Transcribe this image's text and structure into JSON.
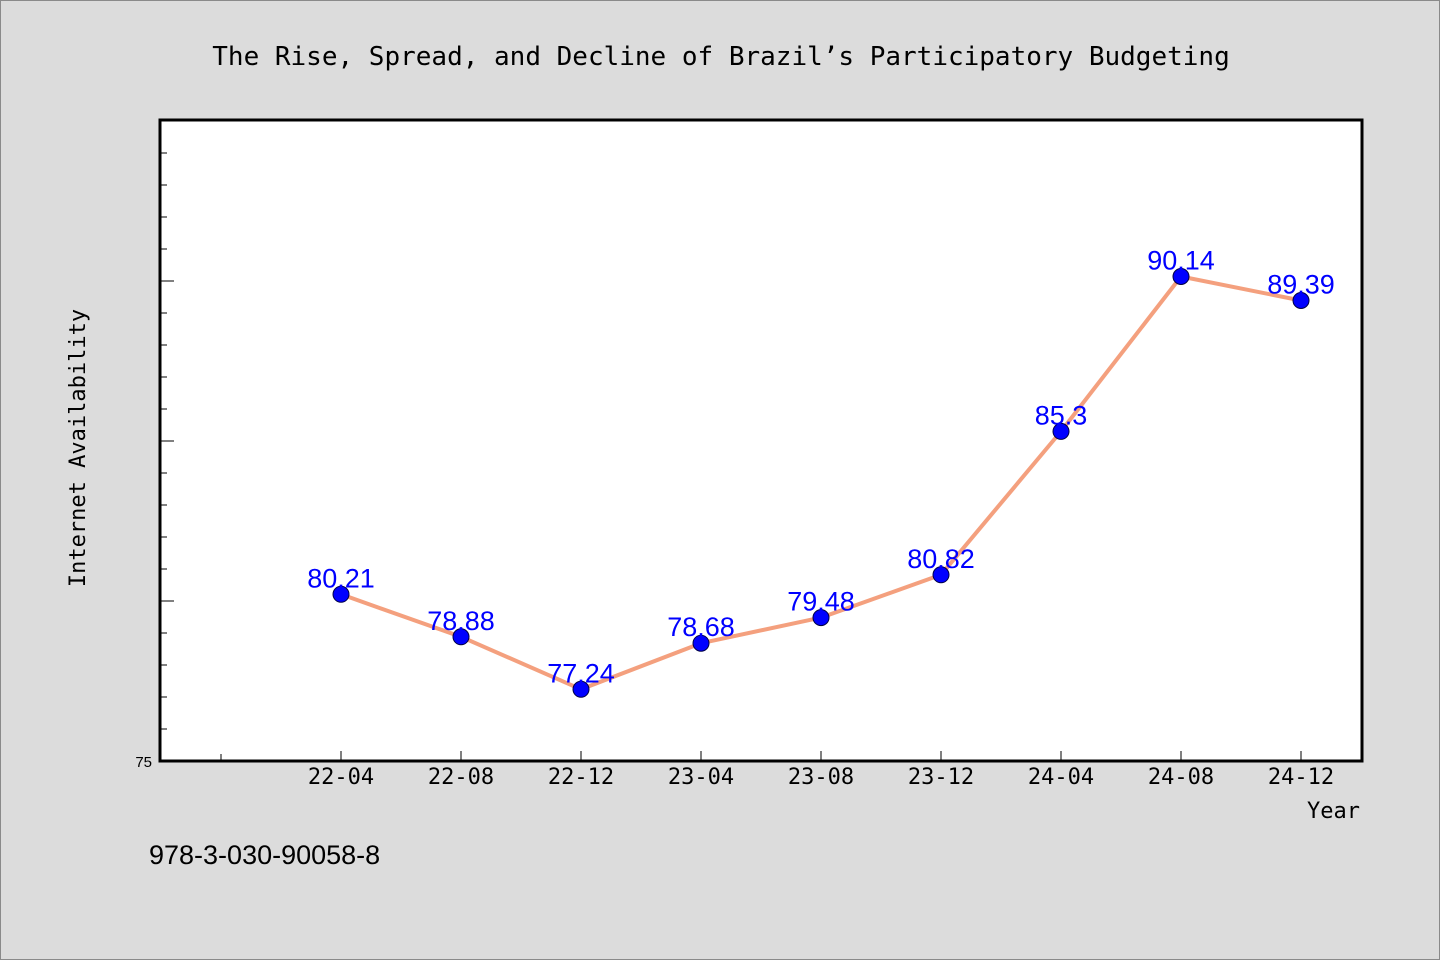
{
  "chart_data": {
    "type": "line",
    "title": "The Rise, Spread, and Decline of Brazil’s Participatory Budgeting",
    "xlabel": "Year",
    "ylabel": "Internet Availability",
    "categories": [
      "22-04",
      "22-08",
      "22-12",
      "23-04",
      "23-08",
      "23-12",
      "24-04",
      "24-08",
      "24-12"
    ],
    "series": [
      {
        "values": [
          80.21,
          78.88,
          77.24,
          78.68,
          79.48,
          80.82,
          85.3,
          90.14,
          89.39
        ],
        "labels": [
          "80.21",
          "78.88",
          "77.24",
          "78.68",
          "79.48",
          "80.82",
          "85.3",
          "90.14",
          "89.39"
        ],
        "line_color": "#f4a07e",
        "marker_color": "#0000ff"
      }
    ],
    "y_tick_labels": [
      "75"
    ],
    "ylim": [
      75,
      95
    ],
    "grid": false,
    "legend": "none"
  },
  "footer_text": "978-3-030-90058-8"
}
